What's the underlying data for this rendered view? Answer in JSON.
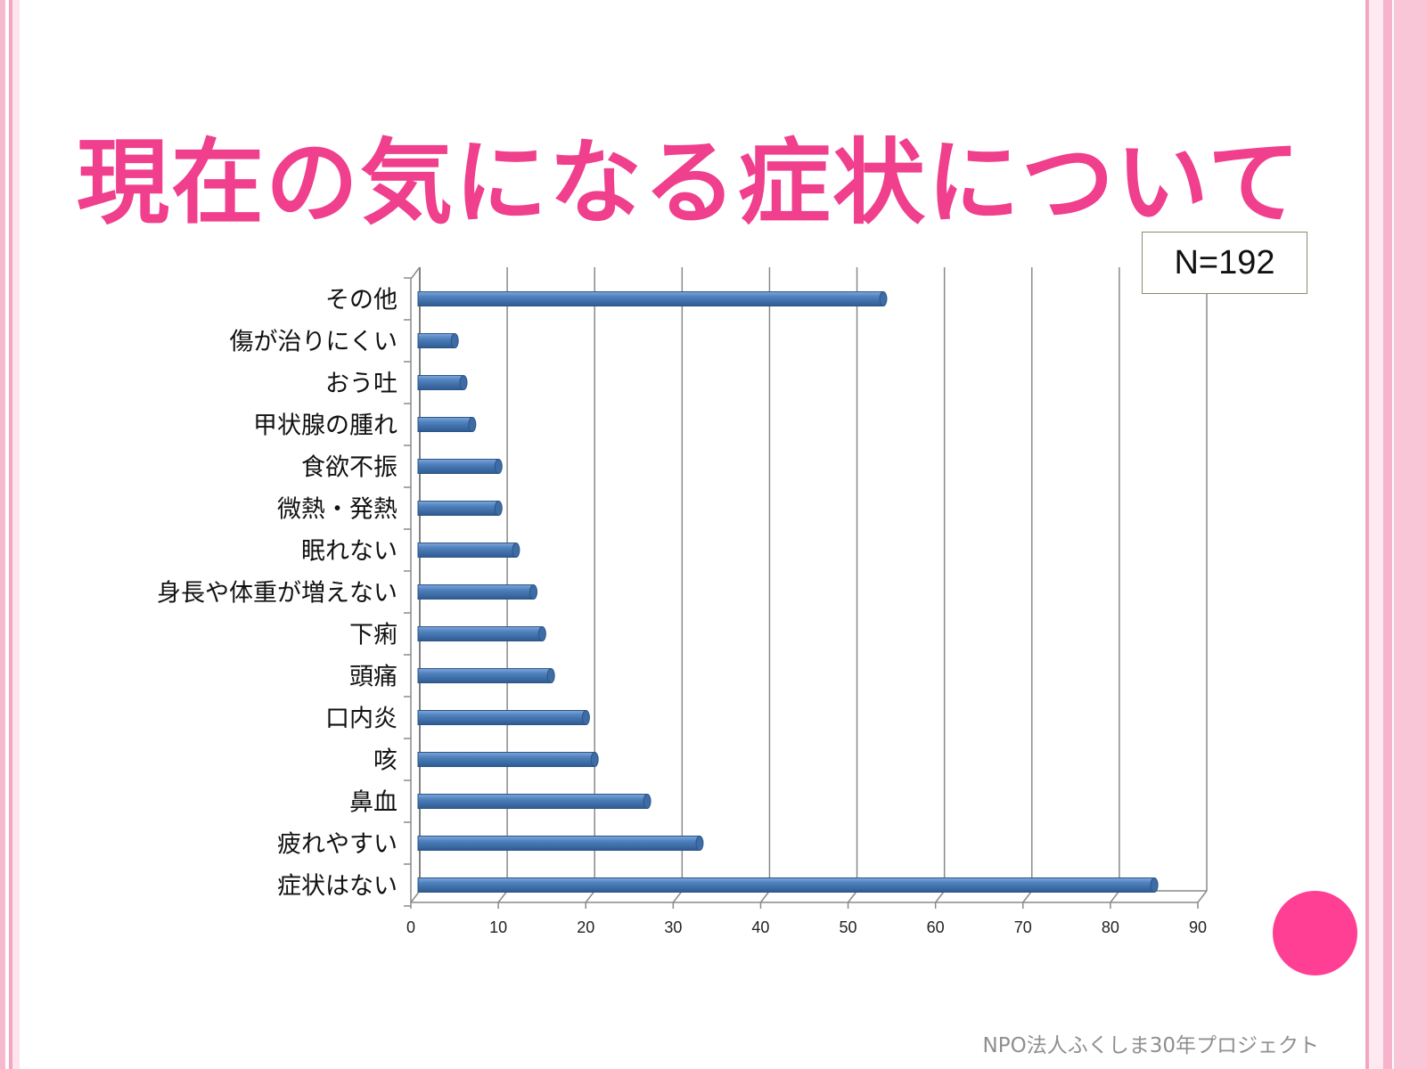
{
  "slide": {
    "title": "現在の気になる症状について",
    "n_label": "N=192",
    "footer": "NPO法人ふくしま30年プロジェクト"
  },
  "colors": {
    "title": "#f03f8c",
    "bar": "#4f81bd",
    "accent_circle": "#ff3f93",
    "border": "#f3a6c2"
  },
  "chart_data": {
    "type": "bar",
    "orientation": "horizontal",
    "style": "3d-cylinder",
    "categories": [
      "症状はない",
      "疲れやすい",
      "鼻血",
      "咳",
      "口内炎",
      "頭痛",
      "下痢",
      "身長や体重が増えない",
      "眠れない",
      "微熱・発熱",
      "食欲不振",
      "甲状腺の腫れ",
      "おう吐",
      "傷が治りにくい",
      "その他"
    ],
    "values": [
      84,
      32,
      26,
      20,
      19,
      15,
      14,
      13,
      11,
      9,
      9,
      6,
      5,
      4,
      53
    ],
    "xlim": [
      0,
      90
    ],
    "xticks": [
      "0",
      "10",
      "20",
      "30",
      "40",
      "50",
      "60",
      "70",
      "80",
      "90"
    ],
    "grid": true,
    "legend": "none",
    "title": "",
    "xlabel": "",
    "ylabel": ""
  }
}
